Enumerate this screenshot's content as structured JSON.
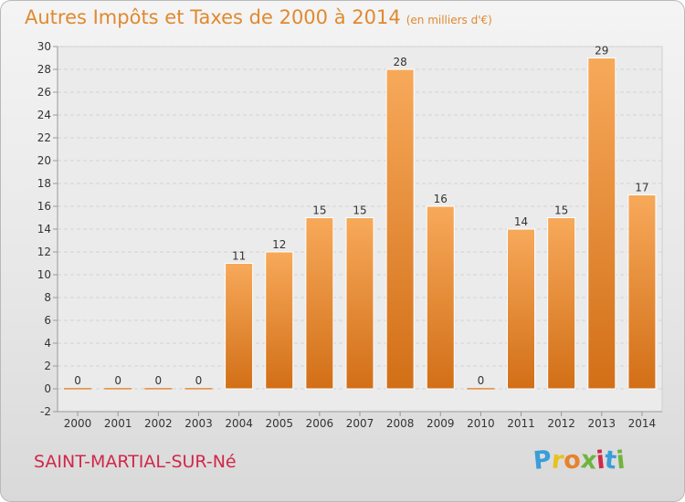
{
  "chart_data": {
    "type": "bar",
    "title": "Autres Impôts et Taxes de 2000 à 2014",
    "subtitle": "(en milliers d'€)",
    "categories": [
      "2000",
      "2001",
      "2002",
      "2003",
      "2004",
      "2005",
      "2006",
      "2007",
      "2008",
      "2009",
      "2010",
      "2011",
      "2012",
      "2013",
      "2014"
    ],
    "values": [
      0,
      0,
      0,
      0,
      11,
      12,
      15,
      15,
      28,
      16,
      0,
      14,
      15,
      29,
      17
    ],
    "data_labels": [
      "0",
      "0",
      "0",
      "0",
      "11",
      "12",
      "15",
      "15",
      "28",
      "16",
      "0",
      "14",
      "15",
      "29",
      "17"
    ],
    "ylim": [
      -2,
      30
    ],
    "yticks": [
      -2,
      0,
      2,
      4,
      6,
      8,
      10,
      12,
      14,
      16,
      18,
      20,
      22,
      24,
      26,
      28,
      30
    ],
    "xlabel": "",
    "ylabel": "",
    "grid": true,
    "bar_color": "#e8822b"
  },
  "footer": {
    "place": "SAINT-MARTIAL-SUR-Né",
    "brand_letters": [
      "P",
      "r",
      "o",
      "x",
      "i",
      "t",
      "i"
    ],
    "brand_colors": [
      "#3a9ed8",
      "#e6c21e",
      "#e8822b",
      "#6fb43f",
      "#d0284a",
      "#3a9ed8",
      "#6fb43f"
    ]
  }
}
